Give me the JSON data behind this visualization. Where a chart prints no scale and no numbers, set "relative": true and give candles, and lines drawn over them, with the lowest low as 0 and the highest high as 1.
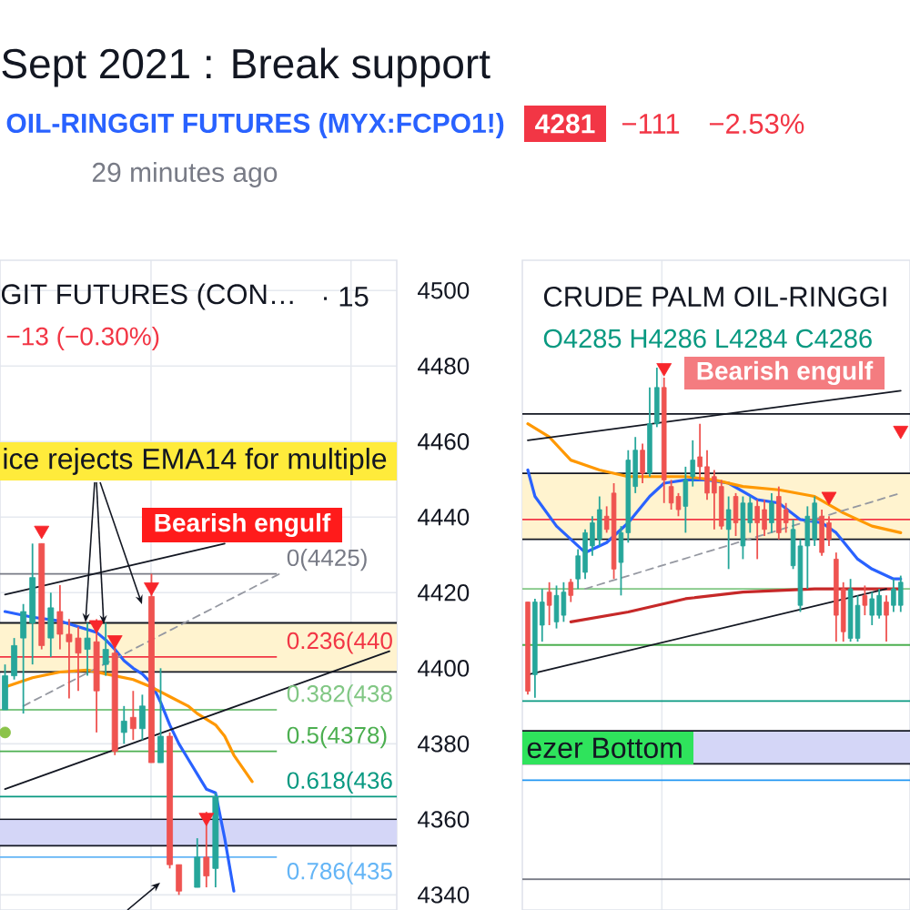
{
  "chart_data": [
    {
      "type": "candlestick",
      "title": "Sept 2021 : Break support",
      "subtitle": "OIL-RINGGIT FUTURES (MYX:FCPO1!)",
      "annotations": [
        "4281",
        "−111",
        "−2.53%",
        "29 minutes ago",
        "GIT FUTURES (CON…",
        "· 15",
        "−13 (−0.30%)",
        "ice rejects EMA14 for multiple",
        "Bearish engulf",
        "0(4425)",
        "0.236(440",
        "0.382(438",
        "0.5(4378)",
        "0.618(436",
        "0.786(435"
      ],
      "categories": [
        null,
        null,
        null,
        null,
        null,
        null,
        null,
        null,
        null,
        null,
        null,
        null,
        null,
        null,
        null,
        null,
        null,
        null,
        null,
        null,
        null,
        null,
        null,
        null,
        null,
        null,
        null,
        null,
        null,
        null,
        null,
        null,
        null,
        null,
        null,
        null,
        null,
        null,
        null,
        null,
        null,
        null,
        null
      ],
      "ohlc": [
        [
          4389,
          4401,
          4389,
          4398
        ],
        [
          4398,
          4408,
          4397,
          4406
        ],
        [
          4408,
          4417,
          4388,
          4415
        ],
        [
          4412,
          4433,
          4401,
          4424
        ],
        [
          4433,
          4433,
          4405,
          4406
        ],
        [
          4408,
          4420,
          4403,
          4416
        ],
        [
          4415,
          4422,
          4405,
          4409
        ],
        [
          4409,
          4413,
          4392,
          4407
        ],
        [
          4408,
          4411,
          4394,
          4404
        ],
        [
          4405,
          4412,
          4398,
          4408
        ],
        [
          4407,
          4413,
          4383,
          4394
        ],
        [
          4401,
          4412,
          4398,
          4405
        ],
        [
          4404,
          4406,
          4377,
          4378
        ],
        [
          4383,
          4390,
          4380,
          4386
        ],
        [
          4387,
          4394,
          4381,
          4384
        ],
        [
          4384,
          4393,
          4381,
          4390
        ],
        [
          4419,
          4425,
          4375,
          4375
        ],
        [
          4375,
          4400,
          4375,
          4382
        ],
        [
          4382,
          4383,
          4347,
          4348
        ],
        [
          4348,
          4348,
          4340,
          4341
        ],
        null,
        [
          4342,
          4355,
          4342,
          4350
        ],
        [
          4350,
          4362,
          4342,
          4345
        ],
        [
          4347,
          4367,
          4342,
          4366
        ],
        null,
        null,
        null,
        null,
        null,
        null,
        null,
        null,
        null,
        null,
        null,
        null,
        null,
        null,
        null,
        null,
        null,
        null,
        null
      ],
      "colors": [
        "#26a69a",
        "#26a69a",
        "#26a69a",
        "#26a69a",
        "#ef5350",
        "#26a69a",
        "#ef5350",
        "#ef5350",
        "#ef5350",
        "#26a69a",
        "#ef5350",
        "#26a69a",
        "#ef5350",
        "#26a69a",
        "#ef5350",
        "#26a69a",
        "#ef5350",
        "#26a69a",
        "#ef5350",
        "#ef5350",
        null,
        "#26a69a",
        "#ef5350",
        "#26a69a",
        null,
        null,
        null,
        null,
        null,
        null,
        null,
        null,
        null,
        null,
        null,
        null,
        null,
        null,
        null,
        null,
        null,
        null,
        null
      ],
      "series": [
        {
          "type": "line",
          "color": "#2962ff",
          "values": [
            4415,
            null,
            null,
            4413.5,
            null,
            null,
            4412.5,
            null,
            null,
            null,
            4409.5,
            4407.5,
            4405,
            4402,
            4400,
            4398.5,
            4396,
            4391,
            4385,
            4380,
            4376,
            4372,
            4368,
            4367,
            4355,
            4341,
            null,
            null,
            null,
            null,
            null,
            null,
            null,
            null,
            null,
            null,
            null,
            null,
            null,
            null,
            null,
            null,
            null
          ]
        },
        {
          "type": "line",
          "color": "#ff9800",
          "values": [
            4395,
            null,
            null,
            4397.5,
            null,
            null,
            4399,
            null,
            null,
            4399.5,
            null,
            null,
            4398,
            null,
            4397,
            null,
            4395,
            null,
            4392.5,
            null,
            4390,
            4388,
            null,
            4385,
            4382,
            4377,
            null,
            4370,
            null,
            null,
            null,
            null,
            null,
            null,
            null,
            null,
            null,
            null,
            null,
            null,
            null,
            null,
            null
          ]
        },
        {
          "type": "line",
          "color": "#131722",
          "values": [
            4419.5,
            null,
            null,
            null,
            null,
            null,
            null,
            null,
            null,
            null,
            null,
            null,
            null,
            null,
            null,
            null,
            null,
            null,
            null,
            null,
            null,
            null,
            null,
            null,
            4433,
            null,
            null,
            null,
            null,
            null,
            null,
            null,
            null,
            null,
            null,
            null,
            null,
            null,
            null,
            null,
            null,
            null,
            null
          ]
        },
        {
          "type": "line",
          "color": "#131722",
          "values": [
            4368,
            null,
            null,
            null,
            null,
            null,
            null,
            null,
            null,
            null,
            null,
            null,
            null,
            null,
            null,
            null,
            null,
            null,
            null,
            null,
            null,
            null,
            null,
            null,
            null,
            null,
            null,
            null,
            null,
            null,
            null,
            null,
            null,
            null,
            null,
            null,
            null,
            null,
            null,
            null,
            null,
            null,
            4404.5
          ]
        },
        {
          "type": "line",
          "color": "#9598a1",
          "line_style": "dashed",
          "values": [
            null,
            null,
            4390,
            null,
            null,
            null,
            null,
            null,
            null,
            null,
            null,
            null,
            null,
            null,
            null,
            null,
            null,
            null,
            null,
            null,
            null,
            null,
            null,
            null,
            null,
            null,
            null,
            null,
            null,
            null,
            4425,
            null,
            null,
            null,
            null,
            null,
            null,
            null,
            null,
            null,
            null,
            null,
            null
          ]
        },
        {
          "type": "scatter",
          "color": "#f7262b",
          "marker": "triangle",
          "values": [
            null,
            null,
            null,
            null,
            4436.5,
            null,
            null,
            null,
            null,
            null,
            4411.5,
            null,
            4407.5,
            null,
            null,
            null,
            4421.5,
            null,
            null,
            null,
            null,
            null,
            4360.5,
            null,
            null,
            null,
            null,
            null,
            null,
            null,
            null,
            null,
            null,
            null,
            null,
            null,
            null,
            null,
            null,
            null,
            null,
            null,
            null
          ]
        },
        {
          "type": "scatter",
          "color": "#8bc34a",
          "marker": "circle",
          "values": [
            4383,
            null,
            null,
            null,
            null,
            null,
            null,
            null,
            null,
            null,
            null,
            null,
            null,
            null,
            null,
            null,
            null,
            null,
            null,
            null,
            null,
            null,
            null,
            null,
            null,
            null,
            null,
            null,
            null,
            null,
            null,
            null,
            null,
            null,
            null,
            null,
            null,
            null,
            null,
            null,
            null,
            null,
            null
          ]
        }
      ],
      "ref_lines": [
        {
          "axis": "y",
          "value": 4425,
          "color": "#787b86"
        },
        {
          "axis": "y",
          "value": 4403,
          "color": "#f23645"
        },
        {
          "axis": "y",
          "value": 4389,
          "color": "#81c784"
        },
        {
          "axis": "y",
          "value": 4378,
          "color": "#4caf50"
        },
        {
          "axis": "y",
          "value": 4366,
          "color": "#089981"
        },
        {
          "axis": "y",
          "value": 4350,
          "color": "#64b5f6"
        },
        {
          "axis": "y",
          "value": 4412,
          "color": "#131722"
        },
        {
          "axis": "y",
          "value": 4399,
          "color": "#131722"
        },
        {
          "axis": "y",
          "value": 4360,
          "color": "#131722"
        },
        {
          "axis": "y",
          "value": 4353,
          "color": "#131722"
        }
      ],
      "bands": [
        {
          "axis": "y",
          "from": 4399,
          "to": 4412,
          "color": "#fff3cf"
        },
        {
          "axis": "y",
          "from": 4353,
          "to": 4360,
          "color": "#d4d6f7"
        }
      ],
      "ylim": [
        4336,
        4508
      ],
      "yticks": [
        4340,
        4360,
        4380,
        4400,
        4420,
        4440,
        4460,
        4480,
        4500
      ],
      "grid": true,
      "tick_labels": "y"
    },
    {
      "type": "candlestick",
      "relative": true,
      "title": "CRUDE PALM OIL-RINGGI",
      "annotations": [
        "O4285 H4286 L4284 C4286",
        "Bearish engulf",
        "ezer Bottom"
      ],
      "categories": [
        null,
        null,
        null,
        null,
        null,
        null,
        null,
        null,
        null,
        null,
        null,
        null,
        null,
        null,
        null,
        null,
        null,
        null,
        null,
        null,
        null,
        null,
        null,
        null,
        null,
        null,
        null,
        null,
        null,
        null,
        null,
        null,
        null,
        null,
        null,
        null,
        null,
        null,
        null,
        null,
        null,
        null,
        null,
        null,
        null,
        null,
        null,
        null,
        null,
        null,
        null,
        null,
        null
      ],
      "ohlc": [
        [
          0.29,
          0.29,
          0.01,
          0.02
        ],
        [
          0.07,
          0.3,
          0.0,
          0.29
        ],
        [
          0.22,
          0.33,
          0.17,
          0.29
        ],
        [
          0.32,
          0.35,
          0.22,
          0.28
        ],
        [
          0.23,
          0.34,
          0.21,
          0.31
        ],
        [
          0.25,
          0.35,
          0.23,
          0.32
        ],
        [
          0.35,
          0.36,
          0.29,
          0.31
        ],
        [
          0.36,
          0.45,
          0.33,
          0.43
        ],
        [
          0.38,
          0.51,
          0.36,
          0.5
        ],
        [
          0.46,
          0.55,
          0.43,
          0.53
        ],
        [
          0.48,
          0.61,
          0.46,
          0.57
        ],
        [
          0.55,
          0.58,
          0.5,
          0.51
        ],
        [
          0.62,
          0.65,
          0.36,
          0.39
        ],
        [
          0.41,
          0.52,
          0.31,
          0.5
        ],
        [
          0.5,
          0.75,
          0.47,
          0.72
        ],
        [
          0.64,
          0.79,
          0.62,
          0.75
        ],
        [
          0.75,
          0.77,
          0.65,
          0.68
        ],
        [
          0.68,
          0.94,
          0.67,
          0.83
        ],
        [
          0.83,
          1.0,
          0.82,
          0.94
        ],
        [
          0.94,
          0.97,
          0.59,
          0.66
        ],
        [
          0.64,
          0.66,
          0.57,
          0.59
        ],
        [
          0.61,
          0.62,
          0.55,
          0.57
        ],
        [
          0.58,
          0.7,
          0.5,
          0.66
        ],
        [
          0.67,
          0.78,
          0.64,
          0.72
        ],
        [
          0.73,
          0.83,
          0.66,
          0.7
        ],
        [
          0.7,
          0.75,
          0.6,
          0.62
        ],
        [
          0.67,
          0.69,
          0.51,
          0.62
        ],
        [
          0.64,
          0.66,
          0.51,
          0.52
        ],
        [
          0.51,
          0.61,
          0.39,
          0.57
        ],
        [
          0.61,
          0.62,
          0.49,
          0.53
        ],
        [
          0.46,
          0.61,
          0.42,
          0.59
        ],
        [
          0.53,
          0.61,
          0.5,
          0.59
        ],
        [
          0.58,
          0.6,
          0.42,
          0.53
        ],
        [
          0.57,
          0.6,
          0.49,
          0.51
        ],
        [
          0.53,
          0.62,
          0.5,
          0.59
        ],
        [
          0.61,
          0.64,
          0.48,
          0.5
        ],
        [
          0.57,
          0.59,
          0.5,
          0.53
        ],
        [
          0.4,
          0.54,
          0.39,
          0.51
        ],
        [
          0.28,
          0.48,
          0.26,
          0.46
        ],
        [
          0.46,
          0.58,
          0.33,
          0.55
        ],
        [
          0.48,
          0.61,
          0.46,
          0.59
        ],
        [
          0.55,
          0.57,
          0.43,
          0.44
        ],
        [
          0.53,
          0.55,
          0.46,
          0.48
        ],
        [
          0.42,
          0.44,
          0.17,
          0.25
        ],
        [
          0.33,
          0.35,
          0.17,
          0.2
        ],
        [
          0.18,
          0.36,
          0.17,
          0.33
        ],
        [
          0.18,
          0.31,
          0.17,
          0.28
        ],
        [
          0.31,
          0.34,
          0.25,
          0.28
        ],
        [
          0.25,
          0.32,
          0.22,
          0.3
        ],
        [
          0.25,
          0.33,
          0.24,
          0.31
        ],
        [
          0.29,
          0.31,
          0.17,
          0.25
        ],
        [
          0.28,
          0.36,
          0.26,
          0.33
        ],
        [
          0.28,
          0.37,
          0.26,
          0.35
        ]
      ],
      "colors": [
        "#ef5350",
        "#26a69a",
        "#26a69a",
        "#ef5350",
        "#26a69a",
        "#26a69a",
        "#ef5350",
        "#26a69a",
        "#26a69a",
        "#26a69a",
        "#26a69a",
        "#ef5350",
        "#ef5350",
        "#26a69a",
        "#26a69a",
        "#26a69a",
        "#ef5350",
        "#26a69a",
        "#26a69a",
        "#ef5350",
        "#ef5350",
        "#ef5350",
        "#26a69a",
        "#26a69a",
        "#ef5350",
        "#ef5350",
        "#ef5350",
        "#ef5350",
        "#26a69a",
        "#ef5350",
        "#26a69a",
        "#26a69a",
        "#ef5350",
        "#ef5350",
        "#26a69a",
        "#ef5350",
        "#ef5350",
        "#26a69a",
        "#26a69a",
        "#26a69a",
        "#26a69a",
        "#ef5350",
        "#ef5350",
        "#ef5350",
        "#ef5350",
        "#26a69a",
        "#26a69a",
        "#ef5350",
        "#26a69a",
        "#26a69a",
        "#ef5350",
        "#26a69a",
        "#26a69a"
      ],
      "series": [
        {
          "type": "line",
          "color": "#2962ff",
          "values": [
            0.69,
            0.61,
            null,
            null,
            0.52,
            null,
            null,
            null,
            0.44,
            null,
            null,
            0.47,
            null,
            null,
            0.53,
            null,
            null,
            0.61,
            null,
            0.65,
            null,
            null,
            0.66,
            null,
            null,
            0.66,
            null,
            null,
            0.65,
            null,
            null,
            null,
            0.6,
            null,
            null,
            0.59,
            null,
            null,
            0.54,
            null,
            null,
            0.53,
            null,
            0.5,
            null,
            null,
            0.42,
            null,
            0.39,
            null,
            null,
            0.36,
            0.36
          ]
        },
        {
          "type": "line",
          "color": "#ff9800",
          "values": [
            0.83,
            null,
            null,
            0.79,
            null,
            null,
            0.72,
            null,
            null,
            null,
            0.69,
            null,
            null,
            null,
            0.67,
            null,
            null,
            null,
            0.67,
            null,
            null,
            null,
            0.67,
            null,
            null,
            null,
            0.66,
            null,
            null,
            null,
            0.64,
            null,
            null,
            null,
            null,
            0.63,
            null,
            null,
            null,
            null,
            0.61,
            null,
            null,
            null,
            0.56,
            null,
            null,
            null,
            0.52,
            null,
            null,
            null,
            0.5
          ]
        },
        {
          "type": "line",
          "color": "#c62828",
          "values": [
            null,
            null,
            null,
            null,
            null,
            null,
            0.23,
            null,
            null,
            null,
            null,
            null,
            null,
            null,
            0.26,
            null,
            null,
            null,
            null,
            null,
            null,
            null,
            0.3,
            null,
            null,
            null,
            null,
            null,
            null,
            null,
            0.32,
            null,
            null,
            null,
            null,
            null,
            null,
            null,
            null,
            null,
            0.33,
            null,
            null,
            null,
            null,
            0.33,
            null,
            null,
            null,
            null,
            null,
            null,
            0.33
          ]
        },
        {
          "type": "line",
          "color": "#131722",
          "values": [
            0.78,
            null,
            null,
            null,
            null,
            null,
            null,
            null,
            null,
            null,
            null,
            null,
            null,
            null,
            null,
            null,
            null,
            null,
            null,
            null,
            null,
            null,
            null,
            null,
            null,
            null,
            null,
            null,
            null,
            null,
            null,
            null,
            null,
            null,
            null,
            null,
            null,
            null,
            null,
            null,
            null,
            null,
            null,
            null,
            null,
            null,
            null,
            null,
            null,
            null,
            null,
            null,
            0.93
          ]
        },
        {
          "type": "line",
          "color": "#131722",
          "values": [
            0.07,
            null,
            null,
            null,
            null,
            null,
            null,
            null,
            null,
            null,
            null,
            null,
            null,
            null,
            null,
            null,
            null,
            null,
            null,
            null,
            null,
            null,
            null,
            null,
            null,
            null,
            null,
            null,
            null,
            null,
            null,
            null,
            null,
            null,
            null,
            null,
            null,
            null,
            null,
            null,
            null,
            null,
            null,
            null,
            null,
            null,
            null,
            null,
            null,
            null,
            0.33,
            null,
            null
          ]
        },
        {
          "type": "line",
          "color": "#9598a1",
          "line_style": "dashed",
          "values": [
            null,
            null,
            null,
            null,
            null,
            null,
            null,
            null,
            0.33,
            null,
            null,
            null,
            null,
            null,
            null,
            null,
            null,
            null,
            null,
            null,
            null,
            null,
            null,
            null,
            null,
            null,
            null,
            null,
            null,
            null,
            null,
            null,
            null,
            null,
            null,
            null,
            null,
            null,
            null,
            null,
            null,
            null,
            null,
            null,
            null,
            null,
            null,
            null,
            null,
            null,
            null,
            null,
            0.62
          ]
        },
        {
          "type": "scatter",
          "color": "#f7262b",
          "marker": "triangle",
          "values": [
            null,
            null,
            null,
            null,
            null,
            null,
            null,
            null,
            null,
            null,
            null,
            null,
            null,
            null,
            null,
            null,
            null,
            null,
            null,
            1.0,
            null,
            null,
            null,
            null,
            null,
            null,
            null,
            null,
            null,
            null,
            null,
            null,
            null,
            null,
            null,
            null,
            null,
            null,
            null,
            null,
            null,
            null,
            0.61,
            null,
            null,
            null,
            null,
            null,
            null,
            null,
            null,
            null,
            0.81
          ]
        }
      ],
      "ref_lines": [
        {
          "axis": "y",
          "value": 0.86,
          "color": "#131722"
        },
        {
          "axis": "y",
          "value": 0.54,
          "color": "#f23645"
        },
        {
          "axis": "y",
          "value": 0.33,
          "color": "#81c784"
        },
        {
          "axis": "y",
          "value": 0.16,
          "color": "#4caf50"
        },
        {
          "axis": "y",
          "value": -0.01,
          "color": "#089981"
        },
        {
          "axis": "y",
          "value": -0.25,
          "color": "#2196f3"
        },
        {
          "axis": "y",
          "value": -0.55,
          "color": "#787b86"
        },
        {
          "axis": "y",
          "value": 0.68,
          "color": "#131722"
        },
        {
          "axis": "y",
          "value": 0.48,
          "color": "#131722"
        },
        {
          "axis": "y",
          "value": -0.1,
          "color": "#131722"
        },
        {
          "axis": "y",
          "value": -0.2,
          "color": "#131722"
        }
      ],
      "bands": [
        {
          "axis": "y",
          "from": 0.48,
          "to": 0.68,
          "color": "#fff3cf"
        },
        {
          "axis": "y",
          "from": -0.2,
          "to": -0.1,
          "color": "#d4d6f7"
        }
      ],
      "grid": "x",
      "tick_labels": false
    }
  ]
}
